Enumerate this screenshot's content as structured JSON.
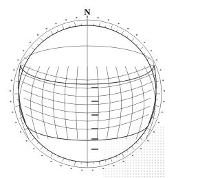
{
  "diagram": {
    "north_label": "N"
  }
}
